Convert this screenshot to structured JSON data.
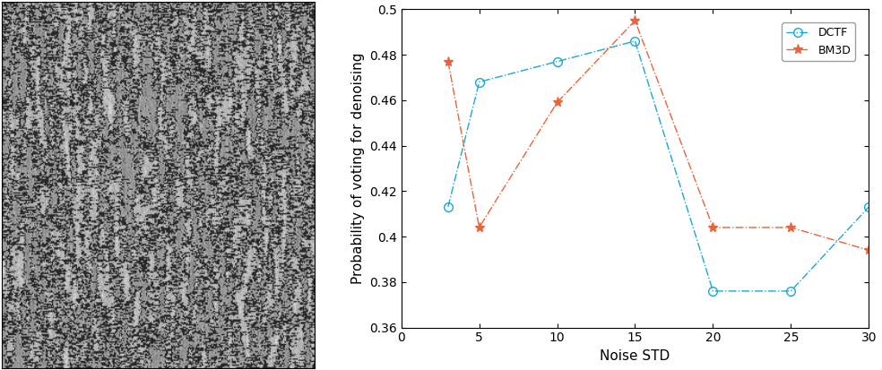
{
  "chart_data": {
    "type": "line",
    "x_label": "Noise STD",
    "y_label": "Probability of voting for denoising",
    "x": [
      3,
      5,
      10,
      15,
      20,
      25,
      30
    ],
    "series": [
      {
        "name": "DCTF",
        "color": "#1aa7d4",
        "marker": "circle",
        "line_style": "dashdot",
        "values": [
          0.413,
          0.468,
          0.477,
          0.486,
          0.376,
          0.376,
          0.413
        ]
      },
      {
        "name": "BM3D",
        "color": "#e8643a",
        "marker": "star",
        "line_style": "dashdot",
        "values": [
          0.477,
          0.404,
          0.459,
          0.495,
          0.404,
          0.404,
          0.394
        ]
      }
    ],
    "xlim": [
      0,
      30
    ],
    "xticks": [
      0,
      5,
      10,
      15,
      20,
      25,
      30
    ],
    "ylim": [
      0.36,
      0.5
    ],
    "yticks": [
      0.36,
      0.38,
      0.4,
      0.42,
      0.44,
      0.46,
      0.48,
      0.5
    ],
    "legend": "upper right",
    "grid": false
  }
}
